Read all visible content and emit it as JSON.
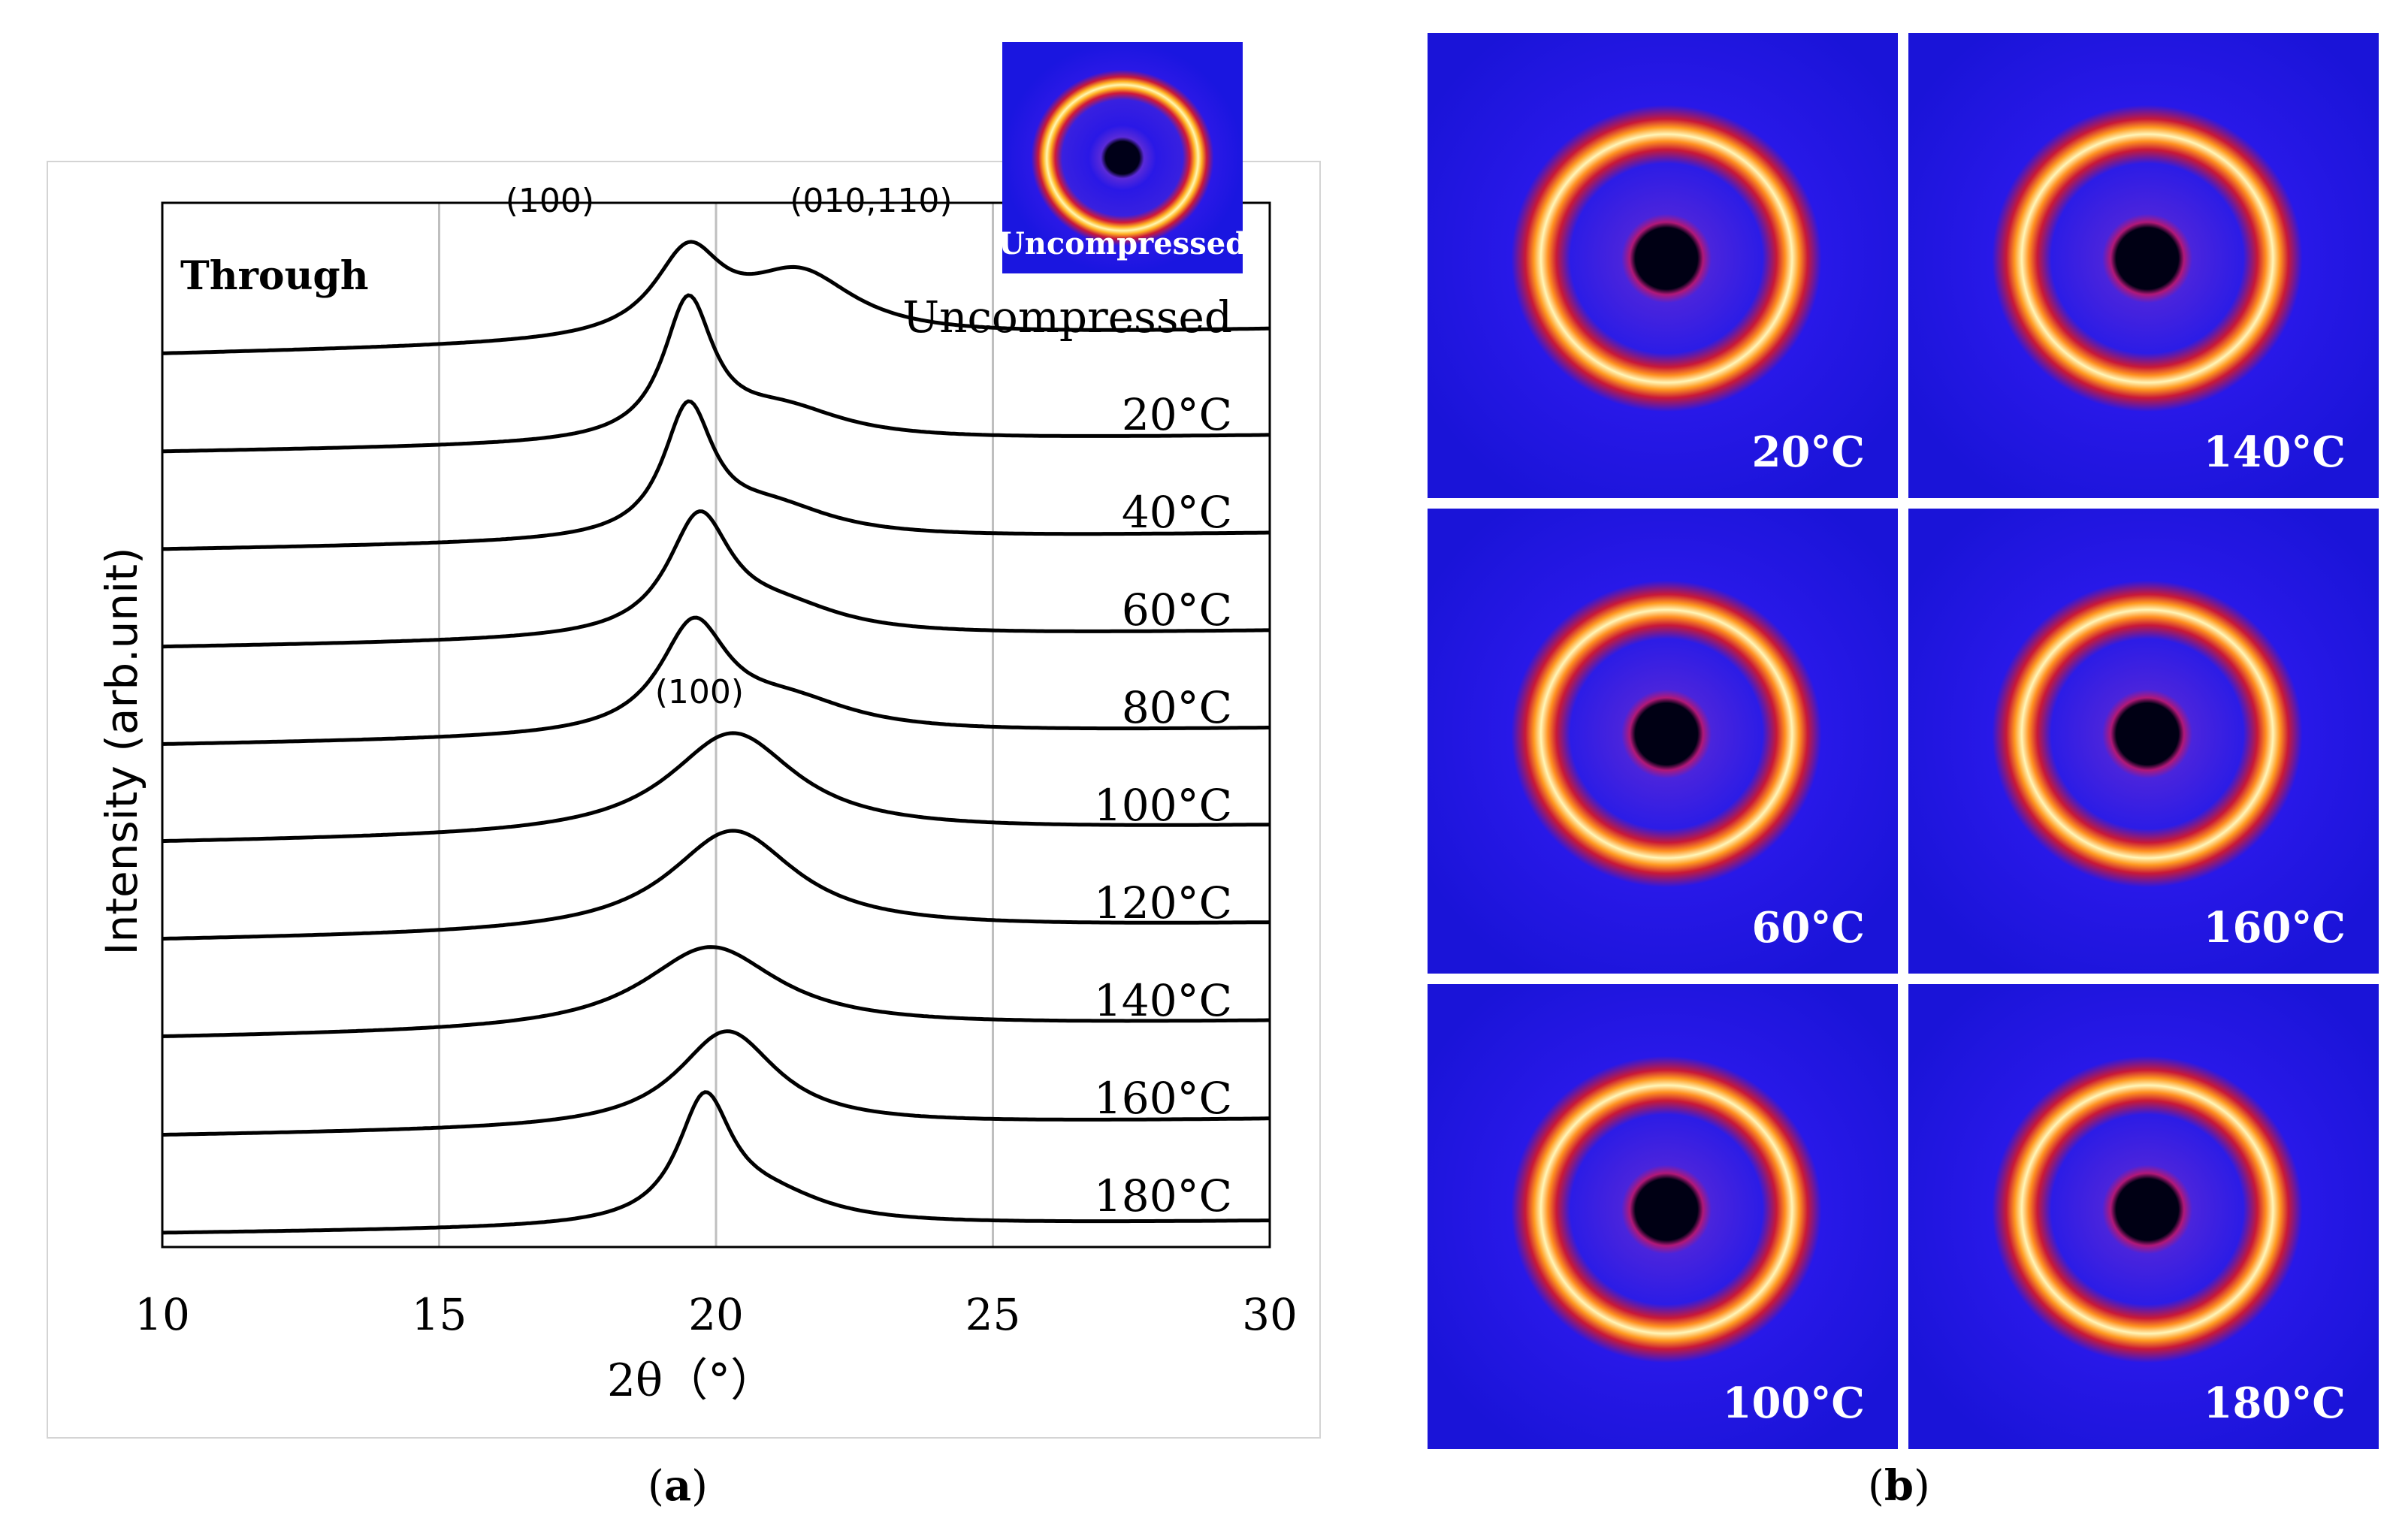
{
  "panel_a": {
    "label_open": "(",
    "label_letter": "a",
    "label_close": ")",
    "inset_label": "Uncompressed"
  },
  "panel_b": {
    "label_open": "(",
    "label_letter": "b",
    "label_close": ")",
    "thumbnails": [
      {
        "label": "20°C"
      },
      {
        "label": "140°C"
      },
      {
        "label": "60°C"
      },
      {
        "label": "160°C"
      },
      {
        "label": "100°C"
      },
      {
        "label": "180°C"
      }
    ]
  },
  "colors": {
    "trace": "#000000",
    "grid": "#bfbfbf",
    "pattern_bg": "#1a16e8",
    "pattern_ring": "#ffd84a",
    "pattern_center": "#000018"
  },
  "chart_data": {
    "type": "line",
    "subtype": "stacked offset XRD profiles",
    "title": "",
    "corner_label": "Through",
    "xlabel": "2θ（°）",
    "ylabel": "Intensity (arb.unit)",
    "xlim": [
      10,
      30
    ],
    "xticks": [
      10,
      15,
      20,
      25,
      30
    ],
    "x_gridlines": [
      15,
      20,
      25
    ],
    "annotations": [
      {
        "text": "(100)",
        "x": 17.0,
        "series": "Uncompressed"
      },
      {
        "text": "(010,110)",
        "x": 22.8,
        "series": "Uncompressed"
      },
      {
        "text": "(100)",
        "x": 19.7,
        "series": "100°C"
      }
    ],
    "series": [
      {
        "name": "Uncompressed",
        "baseline": 9,
        "peaks": [
          {
            "x": 19.5,
            "h": 0.82,
            "w": 0.75
          },
          {
            "x": 21.5,
            "h": 0.62,
            "w": 1.25
          }
        ],
        "background": 0.12
      },
      {
        "name": "20°C",
        "baseline": 8,
        "peaks": [
          {
            "x": 19.5,
            "h": 1.35,
            "w": 0.55
          },
          {
            "x": 21.2,
            "h": 0.3,
            "w": 1.4
          }
        ],
        "background": 0.08
      },
      {
        "name": "40°C",
        "baseline": 7,
        "peaks": [
          {
            "x": 19.5,
            "h": 1.25,
            "w": 0.55
          },
          {
            "x": 21.0,
            "h": 0.3,
            "w": 1.4
          }
        ],
        "background": 0.08
      },
      {
        "name": "60°C",
        "baseline": 6,
        "peaks": [
          {
            "x": 19.7,
            "h": 1.15,
            "w": 0.7
          },
          {
            "x": 21.2,
            "h": 0.25,
            "w": 1.4
          }
        ],
        "background": 0.08
      },
      {
        "name": "80°C",
        "baseline": 5,
        "peaks": [
          {
            "x": 19.6,
            "h": 1.05,
            "w": 0.75
          },
          {
            "x": 21.3,
            "h": 0.3,
            "w": 1.5
          }
        ],
        "background": 0.08
      },
      {
        "name": "100°C",
        "baseline": 4,
        "peaks": [
          {
            "x": 20.3,
            "h": 1.0,
            "w": 1.4
          }
        ],
        "background": 0.08
      },
      {
        "name": "120°C",
        "baseline": 3,
        "peaks": [
          {
            "x": 20.3,
            "h": 1.0,
            "w": 1.4
          }
        ],
        "background": 0.08
      },
      {
        "name": "140°C",
        "baseline": 2,
        "peaks": [
          {
            "x": 19.9,
            "h": 0.82,
            "w": 1.5
          }
        ],
        "background": 0.08
      },
      {
        "name": "160°C",
        "baseline": 1,
        "peaks": [
          {
            "x": 20.2,
            "h": 0.95,
            "w": 1.1
          }
        ],
        "background": 0.08
      },
      {
        "name": "180°C",
        "baseline": 0,
        "peaks": [
          {
            "x": 19.8,
            "h": 1.2,
            "w": 0.6
          },
          {
            "x": 21.0,
            "h": 0.25,
            "w": 1.3
          }
        ],
        "background": 0.06
      }
    ]
  }
}
